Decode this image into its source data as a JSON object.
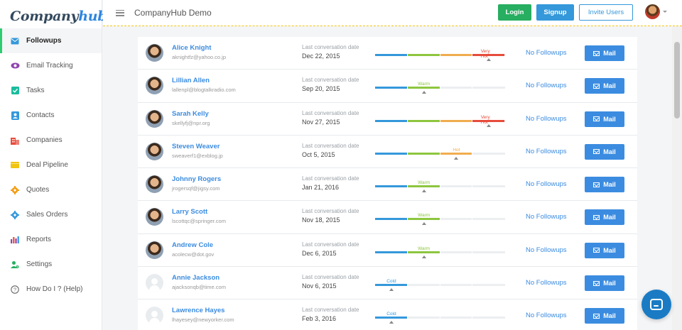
{
  "app": {
    "logo_main": "Company",
    "logo_accent": "hub",
    "title": "CompanyHub Demo"
  },
  "topbar": {
    "login_label": "Login",
    "signup_label": "Signup",
    "invite_label": "Invite Users"
  },
  "sidebar": {
    "items": [
      {
        "label": "Followups",
        "icon": "envelope-icon",
        "color": "#3498db",
        "active": true
      },
      {
        "label": "Email Tracking",
        "icon": "eye-icon",
        "color": "#8e44ad",
        "active": false
      },
      {
        "label": "Tasks",
        "icon": "checkbox-icon",
        "color": "#1abc9c",
        "active": false
      },
      {
        "label": "Contacts",
        "icon": "contact-card-icon",
        "color": "#3498db",
        "active": false
      },
      {
        "label": "Companies",
        "icon": "building-icon",
        "color": "#e74c3c",
        "active": false
      },
      {
        "label": "Deal Pipeline",
        "icon": "pipeline-icon",
        "color": "#f1c40f",
        "active": false
      },
      {
        "label": "Quotes",
        "icon": "gear-icon",
        "color": "#f39c12",
        "active": false
      },
      {
        "label": "Sales Orders",
        "icon": "gear-icon",
        "color": "#3498db",
        "active": false
      },
      {
        "label": "Reports",
        "icon": "bar-chart-icon",
        "color": "#8e44ad",
        "active": false
      },
      {
        "label": "Settings",
        "icon": "user-settings-icon",
        "color": "#27ae60",
        "active": false
      },
      {
        "label": "How Do I ? (Help)",
        "icon": "help-icon",
        "color": "#666666",
        "active": false
      }
    ]
  },
  "colors": {
    "cold": "#3498db",
    "warm": "#8dc63f",
    "hot": "#f0ad4e",
    "very_hot": "#e74c3c"
  },
  "followups": {
    "date_label": "Last conversation date",
    "followup_text": "No Followups",
    "mail_label": "Mail",
    "rows": [
      {
        "name": "Alice Knight",
        "email": "aknightfz@yahoo.co.jp",
        "date": "Dec 22, 2015",
        "temp": "Very Hot",
        "level": 4,
        "avatar": "photo"
      },
      {
        "name": "Lillian Allen",
        "email": "lallenpl@blogtalkradio.com",
        "date": "Sep 20, 2015",
        "temp": "Warm",
        "level": 2,
        "avatar": "photo"
      },
      {
        "name": "Sarah Kelly",
        "email": "skellyfj@npr.org",
        "date": "Nov 27, 2015",
        "temp": "Very Hot",
        "level": 4,
        "avatar": "photo"
      },
      {
        "name": "Steven Weaver",
        "email": "sweaverf1@exblog.jp",
        "date": "Oct 5, 2015",
        "temp": "Hot",
        "level": 3,
        "avatar": "photo"
      },
      {
        "name": "Johnny Rogers",
        "email": "jrogersqf@jigsy.com",
        "date": "Jan 21, 2016",
        "temp": "Warm",
        "level": 2,
        "avatar": "photo"
      },
      {
        "name": "Larry Scott",
        "email": "lscottqc@springer.com",
        "date": "Nov 18, 2015",
        "temp": "Warm",
        "level": 2,
        "avatar": "photo"
      },
      {
        "name": "Andrew Cole",
        "email": "acolecw@dot.gov",
        "date": "Dec 6, 2015",
        "temp": "Warm",
        "level": 2,
        "avatar": "photo"
      },
      {
        "name": "Annie Jackson",
        "email": "ajacksonqb@time.com",
        "date": "Nov 6, 2015",
        "temp": "Cold",
        "level": 1,
        "avatar": "placeholder"
      },
      {
        "name": "Lawrence Hayes",
        "email": "lhayesey@newyorker.com",
        "date": "Feb 3, 2016",
        "temp": "Cold",
        "level": 1,
        "avatar": "placeholder"
      }
    ]
  }
}
